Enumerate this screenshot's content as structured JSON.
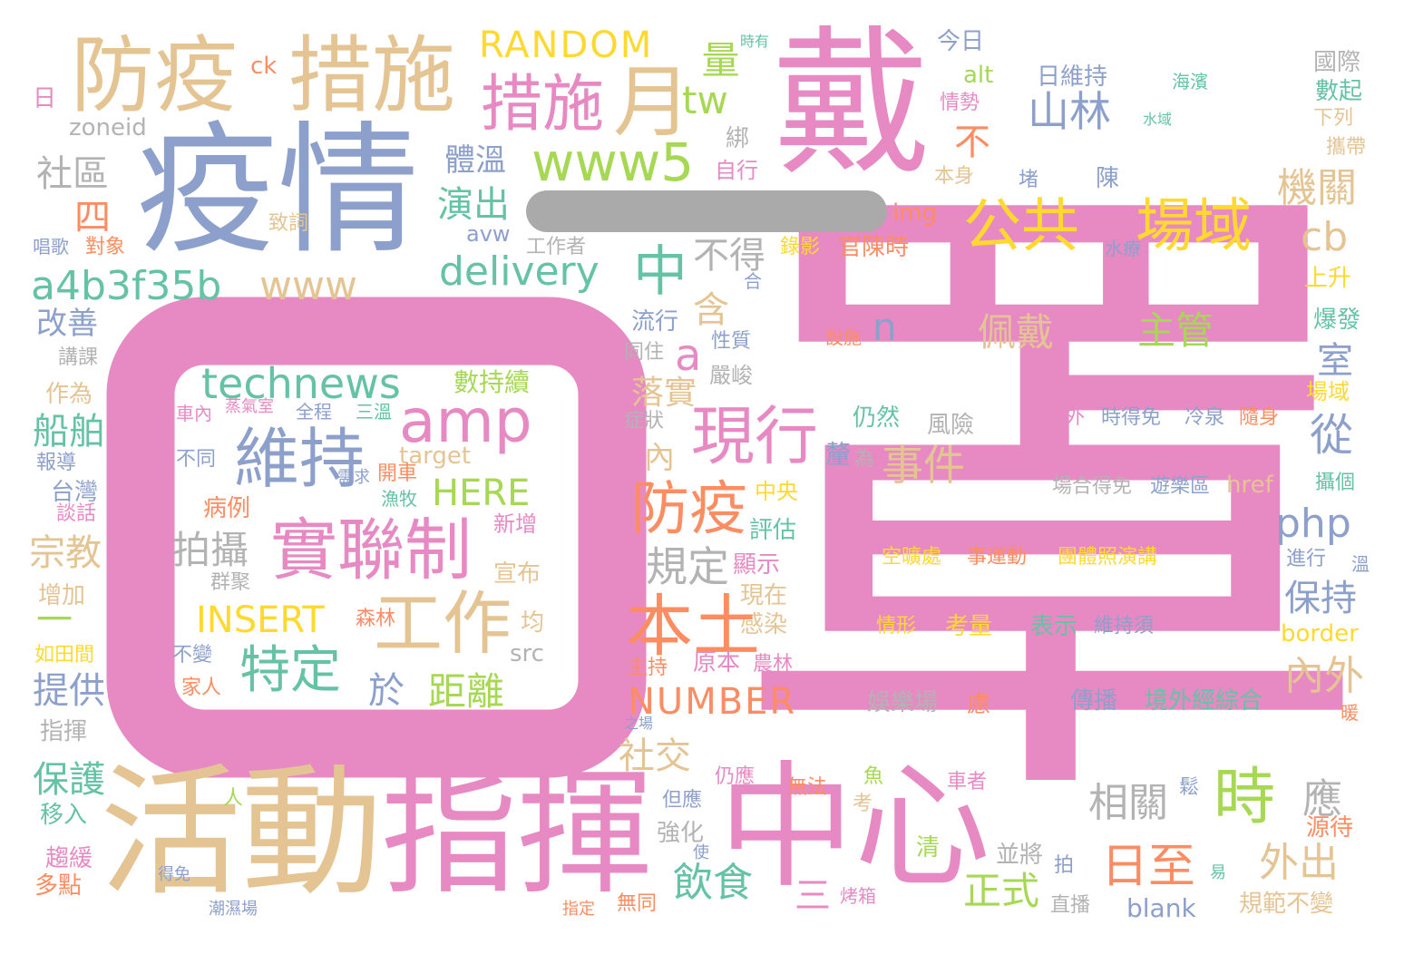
{
  "colors": {
    "pink": "#e78ac3",
    "blue": "#8da0cb",
    "tan": "#e5c494",
    "green": "#66c2a5",
    "lime": "#a6d854",
    "yellow": "#ffd92f",
    "orange": "#fc8d62",
    "gray": "#b3b3b3",
    "redaction": "#aaaaaa"
  },
  "words": [
    {
      "text": "口罩",
      "color": "pink"
    },
    {
      "text": "罩",
      "color": "pink"
    },
    {
      "text": "戴",
      "color": "pink"
    },
    {
      "text": "疫情",
      "color": "blue"
    },
    {
      "text": "活動",
      "color": "tan"
    },
    {
      "text": "指揮",
      "color": "pink"
    },
    {
      "text": "中心",
      "color": "pink"
    },
    {
      "text": "防疫",
      "color": "tan"
    },
    {
      "text": "措施",
      "color": "tan"
    },
    {
      "text": "措施",
      "color": "pink"
    },
    {
      "text": "月",
      "color": "tan"
    },
    {
      "text": "RANDOM",
      "color": "yellow"
    },
    {
      "text": "量",
      "color": "lime"
    },
    {
      "text": "tw",
      "color": "lime"
    },
    {
      "text": "www5",
      "color": "lime"
    },
    {
      "text": "公共",
      "color": "yellow"
    },
    {
      "text": "場域",
      "color": "yellow"
    },
    {
      "text": "山林",
      "color": "blue"
    },
    {
      "text": "日維持",
      "color": "blue"
    },
    {
      "text": "今日",
      "color": "blue"
    },
    {
      "text": "alt",
      "color": "lime"
    },
    {
      "text": "情勢",
      "color": "pink"
    },
    {
      "text": "國際",
      "color": "gray"
    },
    {
      "text": "數起",
      "color": "green"
    },
    {
      "text": "海濱",
      "color": "green"
    },
    {
      "text": "水域",
      "color": "green"
    },
    {
      "text": "下列",
      "color": "tan"
    },
    {
      "text": "攜帶",
      "color": "tan"
    },
    {
      "text": "時有",
      "color": "green"
    },
    {
      "text": "ck",
      "color": "orange"
    },
    {
      "text": "日",
      "color": "pink"
    },
    {
      "text": "zoneid",
      "color": "gray"
    },
    {
      "text": "社區",
      "color": "gray"
    },
    {
      "text": "四",
      "color": "orange"
    },
    {
      "text": "唱歌",
      "color": "blue"
    },
    {
      "text": "對象",
      "color": "orange"
    },
    {
      "text": "致詞",
      "color": "tan"
    },
    {
      "text": "體溫",
      "color": "blue"
    },
    {
      "text": "演出",
      "color": "green"
    },
    {
      "text": "avw",
      "color": "blue"
    },
    {
      "text": "工作者",
      "color": "gray"
    },
    {
      "text": "delivery",
      "color": "green"
    },
    {
      "text": "中",
      "color": "green"
    },
    {
      "text": "不得",
      "color": "gray"
    },
    {
      "text": "a4b3f35b",
      "color": "green"
    },
    {
      "text": "www",
      "color": "tan"
    },
    {
      "text": "綁",
      "color": "gray"
    },
    {
      "text": "自行",
      "color": "pink"
    },
    {
      "text": "不",
      "color": "orange"
    },
    {
      "text": "本身",
      "color": "tan"
    },
    {
      "text": "img",
      "color": "orange"
    },
    {
      "text": "錄影",
      "color": "yellow"
    },
    {
      "text": "官陳時",
      "color": "orange"
    },
    {
      "text": "堵",
      "color": "blue"
    },
    {
      "text": "陳",
      "color": "blue"
    },
    {
      "text": "水療",
      "color": "blue"
    },
    {
      "text": "機關",
      "color": "tan"
    },
    {
      "text": "cb",
      "color": "tan"
    },
    {
      "text": "上升",
      "color": "yellow"
    },
    {
      "text": "爆發",
      "color": "green"
    },
    {
      "text": "場域",
      "color": "yellow"
    },
    {
      "text": "攝個",
      "color": "green"
    },
    {
      "text": "溫",
      "color": "blue"
    },
    {
      "text": "進行",
      "color": "blue"
    },
    {
      "text": "改善",
      "color": "blue"
    },
    {
      "text": "講課",
      "color": "gray"
    },
    {
      "text": "作為",
      "color": "tan"
    },
    {
      "text": "船舶",
      "color": "green"
    },
    {
      "text": "報導",
      "color": "blue"
    },
    {
      "text": "台灣",
      "color": "blue"
    },
    {
      "text": "談話",
      "color": "pink"
    },
    {
      "text": "宗教",
      "color": "tan"
    },
    {
      "text": "增加",
      "color": "tan"
    },
    {
      "text": "一",
      "color": "lime"
    },
    {
      "text": "如田間",
      "color": "yellow"
    },
    {
      "text": "提供",
      "color": "blue"
    },
    {
      "text": "指揮",
      "color": "gray"
    },
    {
      "text": "保護",
      "color": "green"
    },
    {
      "text": "移入",
      "color": "green"
    },
    {
      "text": "趨緩",
      "color": "pink"
    },
    {
      "text": "多點",
      "color": "orange"
    },
    {
      "text": "得免",
      "color": "blue"
    },
    {
      "text": "潮濕場",
      "color": "blue"
    },
    {
      "text": "人",
      "color": "lime"
    },
    {
      "text": "technews",
      "color": "green"
    },
    {
      "text": "amp",
      "color": "pink"
    },
    {
      "text": "維持",
      "color": "blue"
    },
    {
      "text": "數持續",
      "color": "lime"
    },
    {
      "text": "車內",
      "color": "pink"
    },
    {
      "text": "蒸氣室",
      "color": "pink"
    },
    {
      "text": "全程",
      "color": "blue"
    },
    {
      "text": "三溫",
      "color": "green"
    },
    {
      "text": "不同",
      "color": "blue"
    },
    {
      "text": "target",
      "color": "tan"
    },
    {
      "text": "開車",
      "color": "orange"
    },
    {
      "text": "需求",
      "color": "blue"
    },
    {
      "text": "漁牧",
      "color": "green"
    },
    {
      "text": "HERE",
      "color": "lime"
    },
    {
      "text": "病例",
      "color": "orange"
    },
    {
      "text": "新增",
      "color": "pink"
    },
    {
      "text": "實聯制",
      "color": "pink"
    },
    {
      "text": "拍攝",
      "color": "gray"
    },
    {
      "text": "群聚",
      "color": "gray"
    },
    {
      "text": "宣布",
      "color": "tan"
    },
    {
      "text": "INSERT",
      "color": "yellow"
    },
    {
      "text": "森林",
      "color": "orange"
    },
    {
      "text": "工作",
      "color": "tan"
    },
    {
      "text": "均",
      "color": "tan"
    },
    {
      "text": "特定",
      "color": "green"
    },
    {
      "text": "src",
      "color": "gray"
    },
    {
      "text": "不變",
      "color": "blue"
    },
    {
      "text": "家人",
      "color": "orange"
    },
    {
      "text": "於",
      "color": "blue"
    },
    {
      "text": "距離",
      "color": "lime"
    },
    {
      "text": "a",
      "color": "pink"
    },
    {
      "text": "含",
      "color": "tan"
    },
    {
      "text": "流行",
      "color": "blue"
    },
    {
      "text": "同住",
      "color": "gray"
    },
    {
      "text": "落實",
      "color": "tan"
    },
    {
      "text": "現行",
      "color": "pink"
    },
    {
      "text": "症狀",
      "color": "gray"
    },
    {
      "text": "內",
      "color": "tan"
    },
    {
      "text": "性質",
      "color": "blue"
    },
    {
      "text": "嚴峻",
      "color": "gray"
    },
    {
      "text": "合",
      "color": "blue"
    },
    {
      "text": "仍然",
      "color": "green"
    },
    {
      "text": "風險",
      "color": "gray"
    },
    {
      "text": "釐",
      "color": "blue"
    },
    {
      "text": "為",
      "color": "gray"
    },
    {
      "text": "事件",
      "color": "tan"
    },
    {
      "text": "防疫",
      "color": "orange"
    },
    {
      "text": "中央",
      "color": "yellow"
    },
    {
      "text": "評估",
      "color": "green"
    },
    {
      "text": "規定",
      "color": "gray"
    },
    {
      "text": "顯示",
      "color": "pink"
    },
    {
      "text": "現在",
      "color": "tan"
    },
    {
      "text": "感染",
      "color": "tan"
    },
    {
      "text": "本土",
      "color": "orange"
    },
    {
      "text": "原本",
      "color": "pink"
    },
    {
      "text": "主持",
      "color": "orange"
    },
    {
      "text": "農林",
      "color": "pink"
    },
    {
      "text": "NUMBER",
      "color": "orange"
    },
    {
      "text": "社交",
      "color": "tan"
    },
    {
      "text": "娛樂場",
      "color": "gray"
    },
    {
      "text": "慮",
      "color": "orange"
    },
    {
      "text": "之場",
      "color": "blue"
    },
    {
      "text": "仍應",
      "color": "pink"
    },
    {
      "text": "但應",
      "color": "blue"
    },
    {
      "text": "無法",
      "color": "orange"
    },
    {
      "text": "魚",
      "color": "lime"
    },
    {
      "text": "考",
      "color": "tan"
    },
    {
      "text": "強化",
      "color": "gray"
    },
    {
      "text": "使",
      "color": "blue"
    },
    {
      "text": "飲食",
      "color": "green"
    },
    {
      "text": "三",
      "color": "pink"
    },
    {
      "text": "無同",
      "color": "orange"
    },
    {
      "text": "指定",
      "color": "orange"
    },
    {
      "text": "烤箱",
      "color": "pink"
    },
    {
      "text": "n",
      "color": "blue"
    },
    {
      "text": "設施",
      "color": "orange"
    },
    {
      "text": "佩戴",
      "color": "tan"
    },
    {
      "text": "主管",
      "color": "lime"
    },
    {
      "text": "室",
      "color": "blue"
    },
    {
      "text": "從",
      "color": "blue"
    },
    {
      "text": "例外",
      "color": "pink"
    },
    {
      "text": "時得免",
      "color": "blue"
    },
    {
      "text": "冷泉",
      "color": "blue"
    },
    {
      "text": "隨身",
      "color": "orange"
    },
    {
      "text": "場合得免",
      "color": "gray"
    },
    {
      "text": "遊樂區",
      "color": "blue"
    },
    {
      "text": "href",
      "color": "tan"
    },
    {
      "text": "php",
      "color": "blue"
    },
    {
      "text": "空曠處",
      "color": "yellow"
    },
    {
      "text": "事運動",
      "color": "orange"
    },
    {
      "text": "團體照演講",
      "color": "yellow"
    },
    {
      "text": "保持",
      "color": "blue"
    },
    {
      "text": "border",
      "color": "yellow"
    },
    {
      "text": "情形",
      "color": "yellow"
    },
    {
      "text": "考量",
      "color": "yellow"
    },
    {
      "text": "表示",
      "color": "green"
    },
    {
      "text": "維持須",
      "color": "blue"
    },
    {
      "text": "內外",
      "color": "tan"
    },
    {
      "text": "傳播",
      "color": "blue"
    },
    {
      "text": "境外經綜合",
      "color": "green"
    },
    {
      "text": "暖",
      "color": "orange"
    },
    {
      "text": "時",
      "color": "lime"
    },
    {
      "text": "相關",
      "color": "gray"
    },
    {
      "text": "應",
      "color": "gray"
    },
    {
      "text": "車者",
      "color": "pink"
    },
    {
      "text": "鬆",
      "color": "blue"
    },
    {
      "text": "源待",
      "color": "orange"
    },
    {
      "text": "並將",
      "color": "gray"
    },
    {
      "text": "拍",
      "color": "blue"
    },
    {
      "text": "清",
      "color": "lime"
    },
    {
      "text": "日至",
      "color": "orange"
    },
    {
      "text": "易",
      "color": "green"
    },
    {
      "text": "外出",
      "color": "tan"
    },
    {
      "text": "正式",
      "color": "lime"
    },
    {
      "text": "直播",
      "color": "gray"
    },
    {
      "text": "blank",
      "color": "blue"
    },
    {
      "text": "規範不變",
      "color": "tan"
    }
  ]
}
